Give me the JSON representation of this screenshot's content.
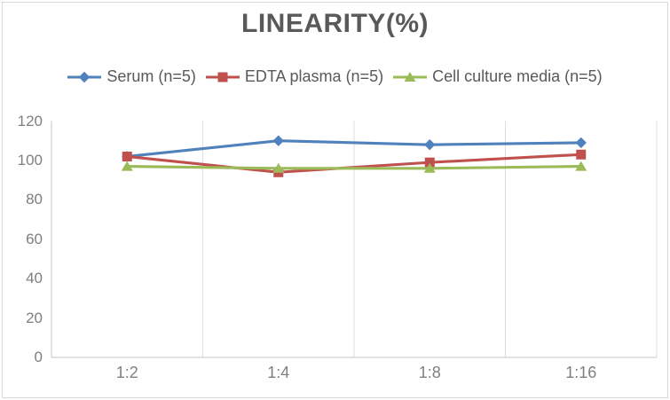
{
  "chart_data": {
    "type": "line",
    "title": "LINEARITY(%)",
    "categories": [
      "1:2",
      "1:4",
      "1:8",
      "1:16"
    ],
    "y_axis": {
      "min": 0,
      "max": 120,
      "tick_step": 20,
      "ticks": [
        0,
        20,
        40,
        60,
        80,
        100,
        120
      ]
    },
    "grid": {
      "vertical": true,
      "horizontal": false
    },
    "legend_position": "top",
    "series": [
      {
        "name": "Serum (n=5)",
        "marker": "diamond",
        "color": "#4F81BD",
        "values": [
          102,
          110,
          108,
          109
        ]
      },
      {
        "name": "EDTA plasma (n=5)",
        "marker": "square",
        "color": "#C0504D",
        "values": [
          102,
          94,
          99,
          103
        ]
      },
      {
        "name": "Cell culture media (n=5)",
        "marker": "triangle",
        "color": "#9BBB59",
        "values": [
          97,
          96,
          96,
          97
        ]
      }
    ],
    "style": {
      "title_color": "#595959",
      "legend_text_color": "#595959",
      "axis_text_color": "#7f7f7f",
      "axis_line_color": "#c6c6c6",
      "gridline_color": "#dddddd",
      "background": "#ffffff",
      "frame_border_color": "#d9d9d9"
    }
  }
}
